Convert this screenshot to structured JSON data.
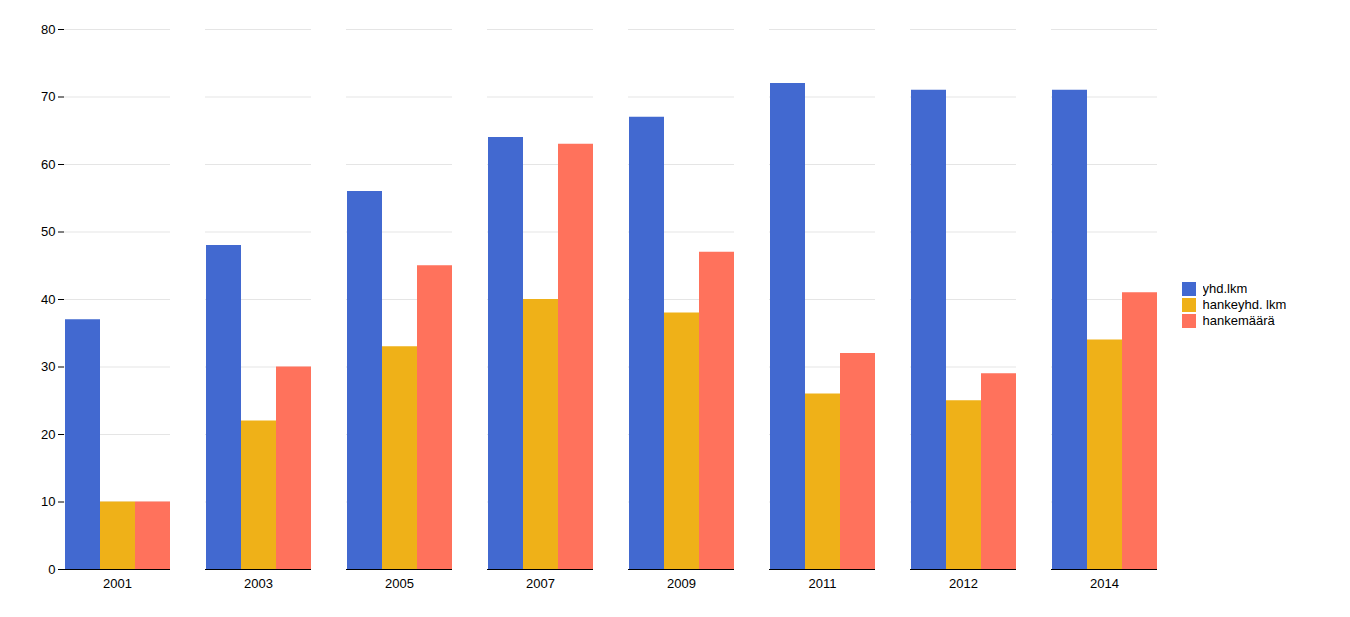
{
  "chart_data": {
    "type": "bar",
    "categories": [
      "2001",
      "2003",
      "2005",
      "2007",
      "2009",
      "2011",
      "2012",
      "2014"
    ],
    "series": [
      {
        "name": "yhd.lkm",
        "values": [
          37,
          48,
          56,
          64,
          67,
          72,
          71,
          71
        ]
      },
      {
        "name": "hankeyhd. lkm",
        "values": [
          10,
          22,
          33,
          40,
          38,
          26,
          25,
          34
        ]
      },
      {
        "name": "hankemäärä",
        "values": [
          10,
          30,
          45,
          63,
          47,
          32,
          29,
          41
        ]
      }
    ],
    "ylim": [
      0,
      80
    ],
    "yticks": [
      0,
      10,
      20,
      30,
      40,
      50,
      60,
      70,
      80
    ],
    "grid": true,
    "legend": "right"
  }
}
